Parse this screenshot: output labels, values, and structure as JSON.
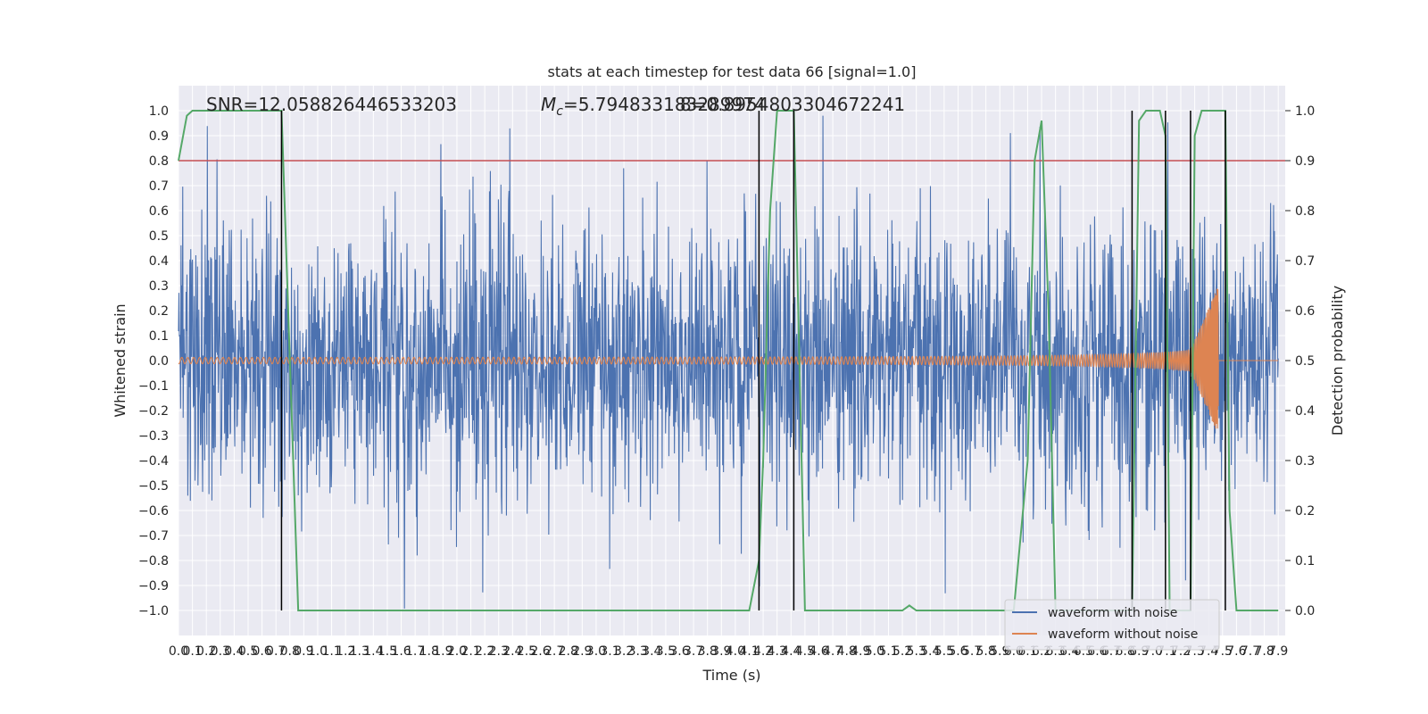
{
  "chart_data": {
    "type": "line",
    "title": "stats at each timestep for test data 66 [signal=1.0]",
    "xlabel": "Time (s)",
    "ylabel_left": "Whitened strain",
    "ylabel_right": "Detection probability",
    "xlim": [
      0.0,
      7.95
    ],
    "ylim_left": [
      -1.1,
      1.1
    ],
    "ylim_right": [
      -0.05,
      1.05
    ],
    "x_ticks": [
      "0.0",
      "0.1",
      "0.2",
      "0.3",
      "0.4",
      "0.5",
      "0.6",
      "0.7",
      "0.8",
      "0.9",
      "1.0",
      "1.1",
      "1.2",
      "1.3",
      "1.4",
      "1.5",
      "1.6",
      "1.7",
      "1.8",
      "1.9",
      "2.0",
      "2.1",
      "2.2",
      "2.3",
      "2.4",
      "2.5",
      "2.6",
      "2.7",
      "2.8",
      "2.9",
      "3.0",
      "3.1",
      "3.2",
      "3.3",
      "3.4",
      "3.5",
      "3.6",
      "3.7",
      "3.8",
      "3.9",
      "4.0",
      "4.1",
      "4.2",
      "4.3",
      "4.4",
      "4.5",
      "4.6",
      "4.7",
      "4.8",
      "4.9",
      "5.0",
      "5.1",
      "5.2",
      "5.3",
      "5.4",
      "5.5",
      "5.6",
      "5.7",
      "5.8",
      "5.9",
      "6.0",
      "6.1",
      "6.2",
      "6.3",
      "6.4",
      "6.5",
      "6.6",
      "6.7",
      "6.8",
      "6.9",
      "7.0",
      "7.1",
      "7.2",
      "7.3",
      "7.4",
      "7.5",
      "7.6",
      "7.7",
      "7.8",
      "7.9"
    ],
    "y_ticks_left": [
      "-1.0",
      "-0.9",
      "-0.8",
      "-0.7",
      "-0.6",
      "-0.5",
      "-0.4",
      "-0.3",
      "-0.2",
      "-0.1",
      "0.0",
      "0.1",
      "0.2",
      "0.3",
      "0.4",
      "0.5",
      "0.6",
      "0.7",
      "0.8",
      "0.9",
      "1.0"
    ],
    "y_ticks_right": [
      "0.0",
      "0.1",
      "0.2",
      "0.3",
      "0.4",
      "0.5",
      "0.6",
      "0.7",
      "0.8",
      "0.9",
      "1.0"
    ],
    "annotations": {
      "snr": "SNR=12.058826446533203",
      "mc_symbol": "M",
      "mc_subscript": "c",
      "mc_value": "=5.794833183289974",
      "overlap_value": "8=0.8954803304672241"
    },
    "threshold_right": 0.9,
    "detection_markers_s": [
      0.74,
      4.17,
      4.42,
      6.85,
      7.09,
      7.27,
      7.52
    ],
    "detection_probability": {
      "x": [
        0.0,
        0.06,
        0.1,
        0.2,
        0.3,
        0.4,
        0.5,
        0.6,
        0.7,
        0.74,
        0.8,
        0.86,
        1.0,
        2.0,
        3.0,
        3.5,
        3.55,
        3.6,
        3.7,
        3.8,
        3.9,
        4.0,
        4.1,
        4.17,
        4.2,
        4.25,
        4.3,
        4.35,
        4.42,
        4.5,
        4.55,
        4.6,
        5.0,
        5.2,
        5.25,
        5.3,
        5.4,
        6.0,
        6.1,
        6.15,
        6.2,
        6.25,
        6.3,
        6.35,
        6.4,
        6.8,
        6.85,
        6.9,
        6.95,
        7.0,
        7.05,
        7.09,
        7.12,
        7.2,
        7.25,
        7.27,
        7.3,
        7.35,
        7.4,
        7.45,
        7.5,
        7.52,
        7.55,
        7.6,
        7.7,
        7.8,
        7.9
      ],
      "y": [
        0.9,
        0.99,
        1.0,
        1.0,
        1.0,
        1.0,
        1.0,
        1.0,
        1.0,
        1.0,
        0.5,
        0.0,
        0.0,
        0.0,
        0.0,
        0.0,
        0.0,
        0.0,
        0.0,
        0.0,
        0.0,
        0.0,
        0.0,
        0.1,
        0.3,
        0.8,
        1.0,
        1.0,
        1.0,
        0.0,
        0.0,
        0.0,
        0.0,
        0.0,
        0.01,
        0.0,
        0.0,
        0.0,
        0.3,
        0.9,
        0.98,
        0.6,
        0.0,
        0.0,
        0.0,
        0.0,
        0.0,
        0.98,
        1.0,
        1.0,
        1.0,
        0.95,
        0.0,
        0.0,
        0.0,
        0.0,
        0.95,
        1.0,
        1.0,
        1.0,
        1.0,
        1.0,
        0.2,
        0.0,
        0.0,
        0.0,
        0.0
      ]
    },
    "series": [
      {
        "name": "waveform with noise",
        "color": "#4c72b0"
      },
      {
        "name": "waveform without noise",
        "color": "#dd8452"
      }
    ],
    "detection_color": "#55a868",
    "threshold_color": "#c44e52",
    "grid": true,
    "legend_placement": "lower-right"
  }
}
